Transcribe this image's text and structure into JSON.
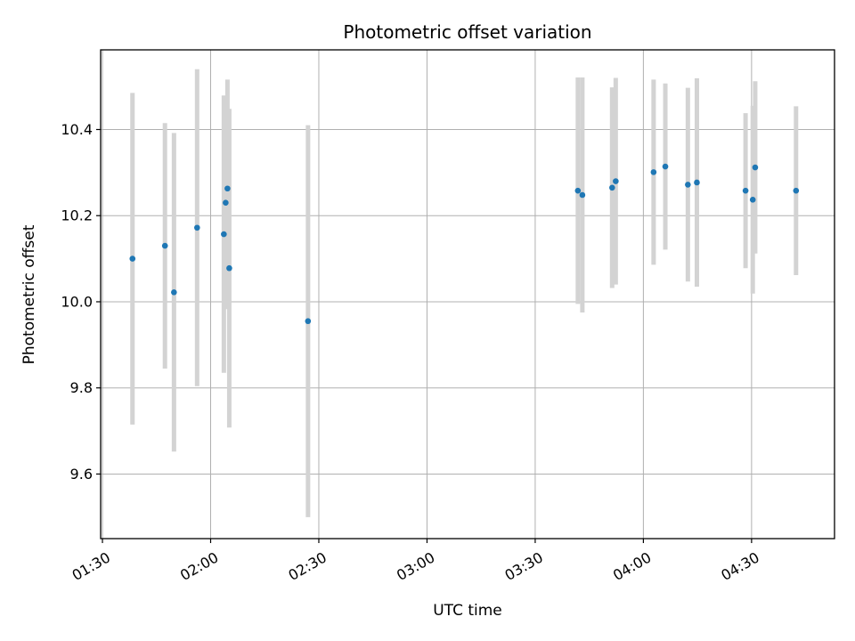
{
  "chart_data": {
    "type": "scatter",
    "title": "Photometric offset variation",
    "xlabel": "UTC time",
    "ylabel": "Photometric offset",
    "xlim": [
      "01:29:30",
      "04:53:00"
    ],
    "ylim": [
      9.45,
      10.585
    ],
    "x_ticks": [
      "01:30",
      "02:00",
      "02:30",
      "03:00",
      "03:30",
      "04:00",
      "04:30"
    ],
    "y_ticks": [
      9.6,
      9.8,
      10.0,
      10.2,
      10.4
    ],
    "grid": true,
    "point_color": "#1f77b4",
    "errorbar_color": "#d3d3d3",
    "points": [
      {
        "x": "01:38:20",
        "y": 10.1,
        "err": 0.385
      },
      {
        "x": "01:47:20",
        "y": 10.13,
        "err": 0.285
      },
      {
        "x": "01:49:50",
        "y": 10.022,
        "err": 0.37
      },
      {
        "x": "01:56:15",
        "y": 10.172,
        "err": 0.368
      },
      {
        "x": "02:03:40",
        "y": 10.157,
        "err": 0.322
      },
      {
        "x": "02:04:10",
        "y": 10.23,
        "err": 0.247
      },
      {
        "x": "02:04:40",
        "y": 10.263,
        "err": 0.253
      },
      {
        "x": "02:05:10",
        "y": 10.078,
        "err": 0.37
      },
      {
        "x": "02:27:00",
        "y": 9.955,
        "err": 0.455
      },
      {
        "x": "03:41:50",
        "y": 10.258,
        "err": 0.263
      },
      {
        "x": "03:43:05",
        "y": 10.248,
        "err": 0.273
      },
      {
        "x": "03:51:20",
        "y": 10.265,
        "err": 0.233
      },
      {
        "x": "03:52:20",
        "y": 10.28,
        "err": 0.24
      },
      {
        "x": "04:02:50",
        "y": 10.301,
        "err": 0.215
      },
      {
        "x": "04:06:05",
        "y": 10.314,
        "err": 0.193
      },
      {
        "x": "04:12:20",
        "y": 10.272,
        "err": 0.225
      },
      {
        "x": "04:14:50",
        "y": 10.277,
        "err": 0.242
      },
      {
        "x": "04:28:20",
        "y": 10.258,
        "err": 0.18
      },
      {
        "x": "04:30:20",
        "y": 10.237,
        "err": 0.218
      },
      {
        "x": "04:31:00",
        "y": 10.312,
        "err": 0.2
      },
      {
        "x": "04:42:20",
        "y": 10.258,
        "err": 0.196
      }
    ]
  }
}
